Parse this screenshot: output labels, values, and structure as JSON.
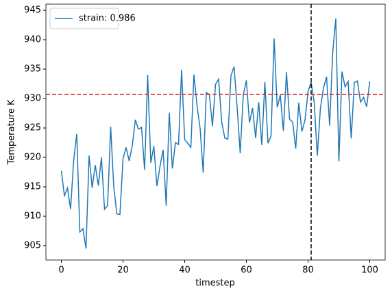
{
  "chart_data": {
    "type": "line",
    "x": [
      0,
      1,
      2,
      3,
      4,
      5,
      6,
      7,
      8,
      9,
      10,
      11,
      12,
      13,
      14,
      15,
      16,
      17,
      18,
      19,
      20,
      21,
      22,
      23,
      24,
      25,
      26,
      27,
      28,
      29,
      30,
      31,
      32,
      33,
      34,
      35,
      36,
      37,
      38,
      39,
      40,
      41,
      42,
      43,
      44,
      45,
      46,
      47,
      48,
      49,
      50,
      51,
      52,
      53,
      54,
      55,
      56,
      57,
      58,
      59,
      60,
      61,
      62,
      63,
      64,
      65,
      66,
      67,
      68,
      69,
      70,
      71,
      72,
      73,
      74,
      75,
      76,
      77,
      78,
      79,
      80,
      81,
      82,
      83,
      84,
      85,
      86,
      87,
      88,
      89,
      90,
      91,
      92,
      93,
      94,
      95,
      96,
      97,
      98,
      99,
      100
    ],
    "series": [
      {
        "name": "strain: 0.986",
        "color": "#1f77b4",
        "values": [
          917.7,
          913.5,
          914.8,
          911.2,
          919.5,
          924.0,
          907.3,
          907.9,
          904.5,
          920.3,
          914.8,
          918.7,
          915.2,
          920.0,
          911.2,
          911.8,
          925.2,
          915.0,
          910.4,
          910.3,
          919.8,
          921.7,
          919.4,
          922.0,
          926.4,
          924.8,
          925.1,
          917.9,
          934.0,
          919.1,
          921.9,
          915.1,
          918.5,
          921.3,
          911.8,
          927.6,
          918.1,
          922.5,
          922.2,
          934.9,
          923.0,
          922.4,
          921.7,
          934.1,
          928.8,
          924.9,
          917.4,
          931.0,
          930.7,
          925.3,
          932.4,
          933.3,
          926.0,
          923.3,
          923.1,
          933.9,
          935.4,
          928.6,
          920.7,
          930.6,
          933.1,
          925.9,
          928.4,
          923.3,
          929.4,
          922.1,
          932.8,
          922.4,
          923.6,
          940.2,
          928.5,
          930.6,
          924.5,
          934.5,
          926.5,
          926.0,
          921.5,
          929.3,
          924.4,
          926.3,
          931.2,
          932.8,
          929.3,
          920.3,
          928.3,
          931.8,
          933.7,
          925.4,
          937.9,
          943.6,
          919.3,
          934.6,
          932.0,
          932.9,
          923.2,
          932.7,
          933.0,
          929.4,
          930.2,
          928.6,
          932.9
        ]
      }
    ],
    "hline": {
      "value": 930.7,
      "color": "#d62728"
    },
    "vline": {
      "value": 81,
      "color": "#000000"
    },
    "xlabel": "timestep",
    "ylabel": "Temperature K",
    "xlim": [
      -5,
      105
    ],
    "xticks": [
      0,
      20,
      40,
      60,
      80,
      100
    ],
    "ylim": [
      902.56,
      946.05
    ],
    "yticks": [
      905,
      910,
      915,
      920,
      925,
      930,
      935,
      940,
      945
    ],
    "legend": "upper left"
  }
}
